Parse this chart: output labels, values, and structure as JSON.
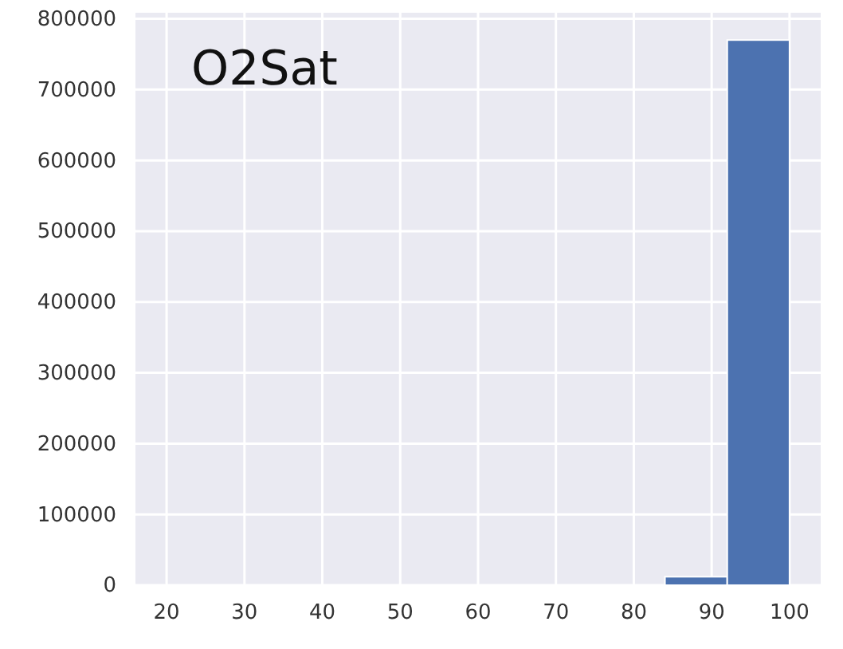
{
  "chart_data": {
    "type": "histogram",
    "title": "O2Sat",
    "bins": [
      20,
      28,
      36,
      44,
      52,
      60,
      68,
      76,
      84,
      92,
      100
    ],
    "values": [
      0,
      0,
      0,
      0,
      0,
      0,
      0,
      0,
      12000,
      770000
    ],
    "color": "#4c72b0",
    "xlim": [
      16,
      104
    ],
    "xticks": [
      20,
      30,
      40,
      50,
      60,
      70,
      80,
      90,
      100
    ],
    "ylim": [
      0,
      808500
    ],
    "yticks": [
      0,
      100000,
      200000,
      300000,
      400000,
      500000,
      600000,
      700000,
      800000
    ],
    "grid": true
  }
}
